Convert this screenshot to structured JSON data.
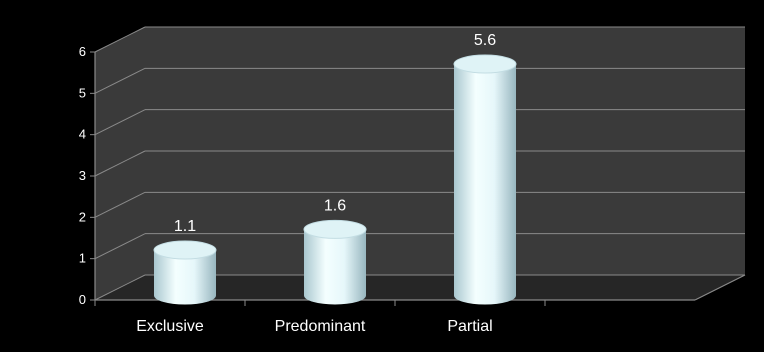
{
  "chart_data": {
    "type": "bar",
    "style": "3d-cylinder",
    "categories": [
      "Exclusive",
      "Predominant",
      "Partial"
    ],
    "values": [
      1.1,
      1.6,
      5.6
    ],
    "data_labels": [
      "1.1",
      "1.6",
      "5.6"
    ],
    "ylim": [
      0,
      6
    ],
    "yticks": [
      "0",
      "1",
      "2",
      "3",
      "4",
      "5",
      "6"
    ],
    "grid": true,
    "legend": "none",
    "colors": {
      "background": "#000000",
      "wall": "#3a3a3a",
      "floor": "#262626",
      "grid": "#8a8a8a",
      "bar_light": "#f4ffff",
      "bar_dark": "#a9c7cf",
      "text": "#ffffff"
    }
  }
}
